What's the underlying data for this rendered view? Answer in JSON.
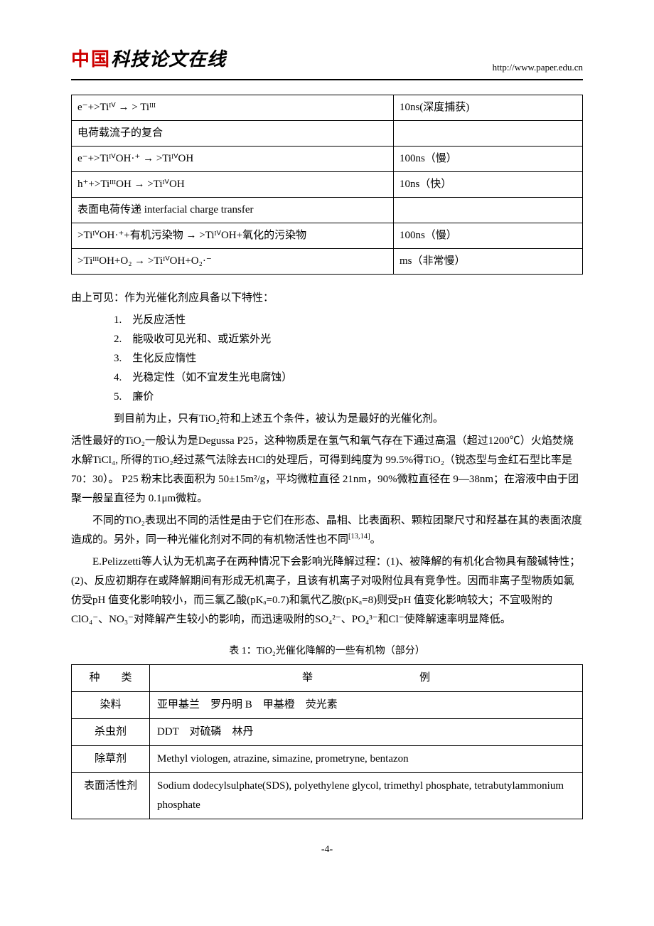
{
  "header": {
    "logo_red": "中国",
    "logo_black": "科技论文在线",
    "url": "http://www.paper.edu.cn"
  },
  "reaction_table": {
    "rows": [
      {
        "reaction": "e⁻+>Tiᴵⱽ → > Tiᴵᴵᴵ",
        "time": "10ns(深度捕获)"
      },
      {
        "reaction": "电荷载流子的复合",
        "time": ""
      },
      {
        "reaction": "e⁻+>TiᴵⱽOH·⁺ → >TiᴵⱽOH",
        "time": "100ns（慢）"
      },
      {
        "reaction": "h⁺+>TiᴵᴵᴵOH → >TiᴵⱽOH",
        "time": "10ns（快）"
      },
      {
        "reaction": "表面电荷传递  interfacial charge transfer",
        "time": ""
      },
      {
        "reaction": ">TiᴵⱽOH·⁺+有机污染物 → >TiᴵⱽOH+氧化的污染物",
        "time": "100ns（慢）"
      },
      {
        "reaction": ">TiᴵᴵᴵOH+O₂ → >TiᴵⱽOH+O₂·⁻",
        "time": "ms（非常慢）"
      }
    ]
  },
  "body": {
    "intro": "由上可见：作为光催化剂应具备以下特性：",
    "props": [
      "1.　光反应活性",
      "2.　能吸收可见光和、或近紫外光",
      "3.　生化反应惰性",
      "4.　光稳定性（如不宜发生光电腐蚀）",
      "5.　廉价"
    ],
    "p1": "到目前为止，只有TiO₂符和上述五个条件，被认为是最好的光催化剂。",
    "p2": "活性最好的TiO₂一般认为是Degussa P25，这种物质是在氢气和氧气存在下通过高温（超过1200℃）火焰焚烧水解TiCl₄, 所得的TiO₂经过蒸气法除去HCl的处理后，可得到纯度为 99.5%得TiO₂（锐态型与金红石型比率是 70：30）。 P25 粉末比表面积为 50±15m²/g，平均微粒直径 21nm，90%微粒直径在 9—38nm；在溶液中由于团聚一般呈直径为 0.1μm微粒。",
    "p3_a": "不同的TiO₂表现出不同的活性是由于它们在形态、晶相、比表面积、颗粒团聚尺寸和羟基在其的表面浓度造成的。另外，同一种光催化剂对不同的有机物活性也不同",
    "p3_ref": "[13,14]",
    "p3_b": "。",
    "p4": "E.Pelizzetti等人认为无机离子在两种情况下会影响光降解过程：(1)、被降解的有机化合物具有酸碱特性；(2)、反应初期存在或降解期间有形成无机离子，且该有机离子对吸附位具有竞争性。因而非离子型物质如氯仿受pH  值变化影响较小，而三氯乙酸(pKₐ=0.7)和氯代乙胺(pKₐ=8)则受pH  值变化影响较大；不宜吸附的ClO₄⁻、NO₃⁻对降解产生较小的影响，而迅速吸附的SO₄²⁻、PO₄³⁻和Cl⁻使降解速率明显降低。"
  },
  "table1": {
    "caption": "表 1：TiO₂光催化降解的一些有机物（部分）",
    "headers": [
      "种　　类",
      "举　　　　　　　　　　例"
    ],
    "rows": [
      [
        "染料",
        "亚甲基兰　罗丹明 B　甲基橙　荧光素"
      ],
      [
        "杀虫剂",
        "DDT　对硫磷　林丹"
      ],
      [
        "除草剂",
        "Methyl viologen, atrazine, simazine, prometryne, bentazon"
      ],
      [
        "表面活性剂",
        "Sodium dodecylsulphate(SDS), polyethylene glycol, trimethyl phosphate, tetrabutylammonium phosphate"
      ]
    ]
  },
  "page_number": "-4-"
}
